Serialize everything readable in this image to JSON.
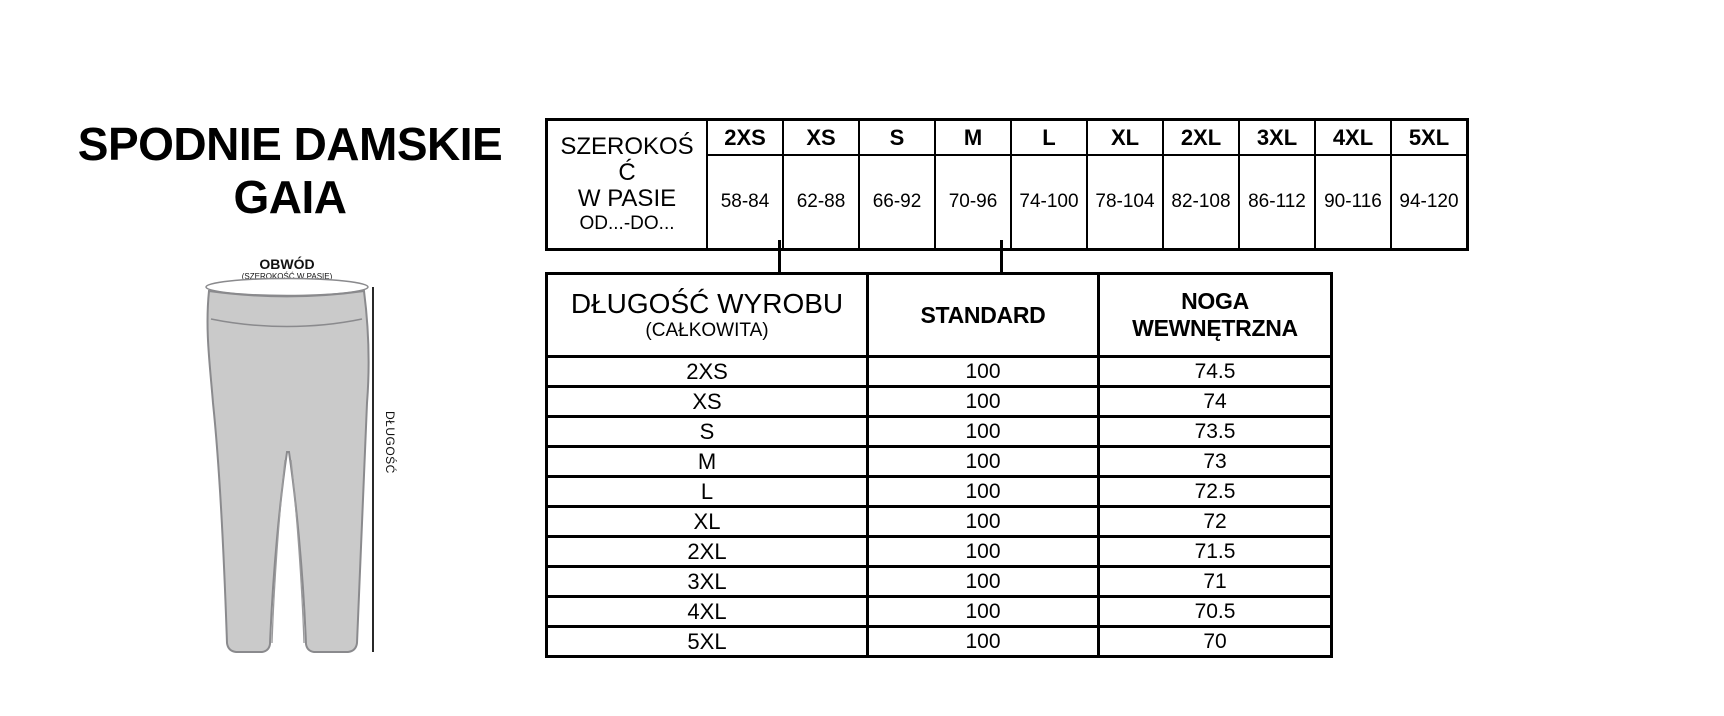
{
  "page": {
    "title_lines": [
      "SPODNIE DAMSKIE",
      "GAIA"
    ]
  },
  "diagram": {
    "waist_label": "OBWÓD",
    "waist_sublabel": "(SZEROKOŚĆ W PASIE)",
    "length_label": "DŁUGOŚĆ",
    "colors": {
      "ink": "#111111",
      "pants_fill": "#cacaca",
      "pants_stroke": "#8a8a8d",
      "seam": "#9a9a9c"
    }
  },
  "size_table": {
    "header_lines": [
      "SZEROKOŚ",
      "Ć",
      "W PASIE",
      "OD...-DO..."
    ],
    "sizes": [
      "2XS",
      "XS",
      "S",
      "M",
      "L",
      "XL",
      "2XL",
      "3XL",
      "4XL",
      "5XL"
    ],
    "ranges": [
      "58-84",
      "62-88",
      "66-92",
      "70-96",
      "74-100",
      "78-104",
      "82-108",
      "86-112",
      "90-116",
      "94-120"
    ]
  },
  "length_table": {
    "col1_line1": "DŁUGOŚĆ WYROBU",
    "col1_line2": "(CAŁKOWITA)",
    "col2": "STANDARD",
    "col3": "NOGA WEWNĘTRZNA",
    "rows": [
      {
        "size": "2XS",
        "standard": "100",
        "inner_leg": "74.5"
      },
      {
        "size": "XS",
        "standard": "100",
        "inner_leg": "74"
      },
      {
        "size": "S",
        "standard": "100",
        "inner_leg": "73.5"
      },
      {
        "size": "M",
        "standard": "100",
        "inner_leg": "73"
      },
      {
        "size": "L",
        "standard": "100",
        "inner_leg": "72.5"
      },
      {
        "size": "XL",
        "standard": "100",
        "inner_leg": "72"
      },
      {
        "size": "2XL",
        "standard": "100",
        "inner_leg": "71.5"
      },
      {
        "size": "3XL",
        "standard": "100",
        "inner_leg": "71"
      },
      {
        "size": "4XL",
        "standard": "100",
        "inner_leg": "70.5"
      },
      {
        "size": "5XL",
        "standard": "100",
        "inner_leg": "70"
      }
    ]
  }
}
